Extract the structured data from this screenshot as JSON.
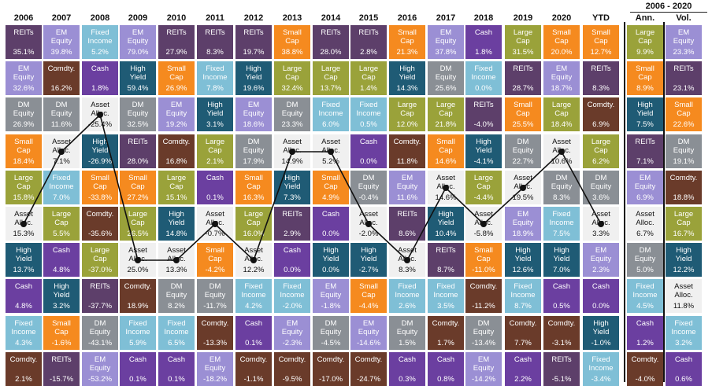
{
  "chart_data": {
    "type": "table",
    "years": [
      "2006",
      "2007",
      "2008",
      "2009",
      "2010",
      "2011",
      "2012",
      "2013",
      "2014",
      "2015",
      "2016",
      "2017",
      "2018",
      "2019",
      "2020",
      "YTD"
    ],
    "summary_title": "2006 - 2020",
    "summary_headers": [
      "Ann.",
      "Vol."
    ],
    "colors": {
      "REITs": "#5d3f6a",
      "EM Equity": "#9b8fd4",
      "Fixed Income": "#7fbfd6",
      "Comdty.": "#6a3b2a",
      "Cash": "#6b3fa0",
      "Small Cap": "#f58a1f",
      "High Yield": "#1f5b75",
      "DM Equity": "#8a8f95",
      "Large Cap": "#9aa23a",
      "Asset Alloc.": "#f0f0f0"
    },
    "names": {
      "REITs": [
        "REITs"
      ],
      "EM Equity": [
        "EM",
        "Equity"
      ],
      "Fixed Income": [
        "Fixed",
        "Income"
      ],
      "Comdty.": [
        "Comdty."
      ],
      "Cash": [
        "Cash"
      ],
      "Small Cap": [
        "Small",
        "Cap"
      ],
      "High Yield": [
        "High",
        "Yield"
      ],
      "DM Equity": [
        "DM",
        "Equity"
      ],
      "Large Cap": [
        "Large",
        "Cap"
      ],
      "Asset Alloc.": [
        "Asset",
        "Alloc."
      ]
    },
    "columns": [
      {
        "label": "2006",
        "cells": [
          [
            "REITs",
            "35.1%"
          ],
          [
            "EM Equity",
            "32.6%"
          ],
          [
            "DM Equity",
            "26.9%"
          ],
          [
            "Small Cap",
            "18.4%"
          ],
          [
            "Large Cap",
            "15.8%"
          ],
          [
            "Asset Alloc.",
            "15.3%"
          ],
          [
            "High Yield",
            "13.7%"
          ],
          [
            "Cash",
            "4.8%"
          ],
          [
            "Fixed Income",
            "4.3%"
          ],
          [
            "Comdty.",
            "2.1%"
          ]
        ]
      },
      {
        "label": "2007",
        "cells": [
          [
            "EM Equity",
            "39.8%"
          ],
          [
            "Comdty.",
            "16.2%"
          ],
          [
            "DM Equity",
            "11.6%"
          ],
          [
            "Asset Alloc.",
            "7.1%"
          ],
          [
            "Fixed Income",
            "7.0%"
          ],
          [
            "Large Cap",
            "5.5%"
          ],
          [
            "Cash",
            "4.8%"
          ],
          [
            "High Yield",
            "3.2%"
          ],
          [
            "Small Cap",
            "-1.6%"
          ],
          [
            "REITs",
            "-15.7%"
          ]
        ]
      },
      {
        "label": "2008",
        "cells": [
          [
            "Fixed Income",
            "5.2%"
          ],
          [
            "Cash",
            "1.8%"
          ],
          [
            "Asset Alloc.",
            "-25.4%"
          ],
          [
            "High Yield",
            "-26.9%"
          ],
          [
            "Small Cap",
            "-33.8%"
          ],
          [
            "Comdty.",
            "-35.6%"
          ],
          [
            "Large Cap",
            "-37.0%"
          ],
          [
            "REITs",
            "-37.7%"
          ],
          [
            "DM Equity",
            "-43.1%"
          ],
          [
            "EM Equity",
            "-53.2%"
          ]
        ]
      },
      {
        "label": "2009",
        "cells": [
          [
            "EM Equity",
            "79.0%"
          ],
          [
            "High Yield",
            "59.4%"
          ],
          [
            "DM Equity",
            "32.5%"
          ],
          [
            "REITs",
            "28.0%"
          ],
          [
            "Small Cap",
            "27.2%"
          ],
          [
            "Large Cap",
            "26.5%"
          ],
          [
            "Asset Alloc.",
            "25.0%"
          ],
          [
            "Comdty.",
            "18.9%"
          ],
          [
            "Fixed Income",
            "5.9%"
          ],
          [
            "Cash",
            "0.1%"
          ]
        ]
      },
      {
        "label": "2010",
        "cells": [
          [
            "REITs",
            "27.9%"
          ],
          [
            "Small Cap",
            "26.9%"
          ],
          [
            "EM Equity",
            "19.2%"
          ],
          [
            "Comdty.",
            "16.8%"
          ],
          [
            "Large Cap",
            "15.1%"
          ],
          [
            "High Yield",
            "14.8%"
          ],
          [
            "Asset Alloc.",
            "13.3%"
          ],
          [
            "DM Equity",
            "8.2%"
          ],
          [
            "Fixed Income",
            "6.5%"
          ],
          [
            "Cash",
            "0.1%"
          ]
        ]
      },
      {
        "label": "2011",
        "cells": [
          [
            "REITs",
            "8.3%"
          ],
          [
            "Fixed Income",
            "7.8%"
          ],
          [
            "High Yield",
            "3.1%"
          ],
          [
            "Large Cap",
            "2.1%"
          ],
          [
            "Cash",
            "0.1%"
          ],
          [
            "Asset Alloc.",
            "-0.7%"
          ],
          [
            "Small Cap",
            "-4.2%"
          ],
          [
            "DM Equity",
            "-11.7%"
          ],
          [
            "Comdty.",
            "-13.3%"
          ],
          [
            "EM Equity",
            "-18.2%"
          ]
        ]
      },
      {
        "label": "2012",
        "cells": [
          [
            "REITs",
            "19.7%"
          ],
          [
            "High Yield",
            "19.6%"
          ],
          [
            "EM Equity",
            "18.6%"
          ],
          [
            "DM Equity",
            "17.9%"
          ],
          [
            "Small Cap",
            "16.3%"
          ],
          [
            "Large Cap",
            "16.0%"
          ],
          [
            "Asset Alloc.",
            "12.2%"
          ],
          [
            "Fixed Income",
            "4.2%"
          ],
          [
            "Cash",
            "0.1%"
          ],
          [
            "Comdty.",
            "-1.1%"
          ]
        ]
      },
      {
        "label": "2013",
        "cells": [
          [
            "Small Cap",
            "38.8%"
          ],
          [
            "Large Cap",
            "32.4%"
          ],
          [
            "DM Equity",
            "23.3%"
          ],
          [
            "Asset Alloc.",
            "14.9%"
          ],
          [
            "High Yield",
            "7.3%"
          ],
          [
            "REITs",
            "2.9%"
          ],
          [
            "Cash",
            "0.0%"
          ],
          [
            "Fixed Income",
            "-2.0%"
          ],
          [
            "EM Equity",
            "-2.3%"
          ],
          [
            "Comdty.",
            "-9.5%"
          ]
        ]
      },
      {
        "label": "2014",
        "cells": [
          [
            "REITs",
            "28.0%"
          ],
          [
            "Large Cap",
            "13.7%"
          ],
          [
            "Fixed Income",
            "6.0%"
          ],
          [
            "Asset Alloc.",
            "5.2%"
          ],
          [
            "Small Cap",
            "4.9%"
          ],
          [
            "Cash",
            "0.0%"
          ],
          [
            "High Yield",
            "0.0%"
          ],
          [
            "EM Equity",
            "-1.8%"
          ],
          [
            "DM Equity",
            "-4.5%"
          ],
          [
            "Comdty.",
            "-17.0%"
          ]
        ]
      },
      {
        "label": "2015",
        "cells": [
          [
            "REITs",
            "2.8%"
          ],
          [
            "Large Cap",
            "1.4%"
          ],
          [
            "Fixed Income",
            "0.5%"
          ],
          [
            "Cash",
            "0.0%"
          ],
          [
            "DM Equity",
            "-0.4%"
          ],
          [
            "Asset Alloc.",
            "-2.0%"
          ],
          [
            "High Yield",
            "-2.7%"
          ],
          [
            "Small Cap",
            "-4.4%"
          ],
          [
            "EM Equity",
            "-14.6%"
          ],
          [
            "Comdty.",
            "-24.7%"
          ]
        ]
      },
      {
        "label": "2016",
        "cells": [
          [
            "Small Cap",
            "21.3%"
          ],
          [
            "High Yield",
            "14.3%"
          ],
          [
            "Large Cap",
            "12.0%"
          ],
          [
            "Comdty.",
            "11.8%"
          ],
          [
            "EM Equity",
            "11.6%"
          ],
          [
            "REITs",
            "8.6%"
          ],
          [
            "Asset Alloc.",
            "8.3%"
          ],
          [
            "Fixed Income",
            "2.6%"
          ],
          [
            "DM Equity",
            "1.5%"
          ],
          [
            "Cash",
            "0.3%"
          ]
        ]
      },
      {
        "label": "2017",
        "cells": [
          [
            "EM Equity",
            "37.8%"
          ],
          [
            "DM Equity",
            "25.6%"
          ],
          [
            "Large Cap",
            "21.8%"
          ],
          [
            "Small Cap",
            "14.6%"
          ],
          [
            "Asset Alloc.",
            "14.6%"
          ],
          [
            "High Yield",
            "10.4%"
          ],
          [
            "REITs",
            "8.7%"
          ],
          [
            "Fixed Income",
            "3.5%"
          ],
          [
            "Comdty.",
            "1.7%"
          ],
          [
            "Cash",
            "0.8%"
          ]
        ]
      },
      {
        "label": "2018",
        "cells": [
          [
            "Cash",
            "1.8%"
          ],
          [
            "Fixed Income",
            "0.0%"
          ],
          [
            "REITs",
            "-4.0%"
          ],
          [
            "High Yield",
            "-4.1%"
          ],
          [
            "Large Cap",
            "-4.4%"
          ],
          [
            "Asset Alloc.",
            "-5.8%"
          ],
          [
            "Small Cap",
            "-11.0%"
          ],
          [
            "Comdty.",
            "-11.2%"
          ],
          [
            "DM Equity",
            "-13.4%"
          ],
          [
            "EM Equity",
            "-14.2%"
          ]
        ]
      },
      {
        "label": "2019",
        "cells": [
          [
            "Large Cap",
            "31.5%"
          ],
          [
            "REITs",
            "28.7%"
          ],
          [
            "Small Cap",
            "25.5%"
          ],
          [
            "DM Equity",
            "22.7%"
          ],
          [
            "Asset Alloc.",
            "19.5%"
          ],
          [
            "EM Equity",
            "18.9%"
          ],
          [
            "High Yield",
            "12.6%"
          ],
          [
            "Fixed Income",
            "8.7%"
          ],
          [
            "Comdty.",
            "7.7%"
          ],
          [
            "Cash",
            "2.2%"
          ]
        ]
      },
      {
        "label": "2020",
        "cells": [
          [
            "Small Cap",
            "20.0%"
          ],
          [
            "EM Equity",
            "18.7%"
          ],
          [
            "Large Cap",
            "18.4%"
          ],
          [
            "Asset Alloc.",
            "10.6%"
          ],
          [
            "DM Equity",
            "8.3%"
          ],
          [
            "Fixed Income",
            "7.5%"
          ],
          [
            "High Yield",
            "7.0%"
          ],
          [
            "Cash",
            "0.5%"
          ],
          [
            "Comdty.",
            "-3.1%"
          ],
          [
            "REITs",
            "-5.1%"
          ]
        ]
      },
      {
        "label": "YTD",
        "cells": [
          [
            "Small Cap",
            "12.7%"
          ],
          [
            "REITs",
            "8.3%"
          ],
          [
            "Comdty.",
            "6.9%"
          ],
          [
            "Large Cap",
            "6.2%"
          ],
          [
            "DM Equity",
            "3.6%"
          ],
          [
            "Asset Alloc.",
            "3.3%"
          ],
          [
            "EM Equity",
            "2.3%"
          ],
          [
            "Cash",
            "0.0%"
          ],
          [
            "High Yield",
            "-1.0%"
          ],
          [
            "Fixed Income",
            "-3.4%"
          ]
        ]
      },
      {
        "label": "Ann.",
        "cells": [
          [
            "Large Cap",
            "9.9%"
          ],
          [
            "Small Cap",
            "8.9%"
          ],
          [
            "High Yield",
            "7.5%"
          ],
          [
            "REITs",
            "7.1%"
          ],
          [
            "EM Equity",
            "6.9%"
          ],
          [
            "Asset Alloc.",
            "6.7%"
          ],
          [
            "DM Equity",
            "5.0%"
          ],
          [
            "Fixed Income",
            "4.5%"
          ],
          [
            "Cash",
            "1.2%"
          ],
          [
            "Comdty.",
            "-4.0%"
          ]
        ]
      },
      {
        "label": "Vol.",
        "cells": [
          [
            "EM Equity",
            "23.3%"
          ],
          [
            "REITs",
            "23.1%"
          ],
          [
            "Small Cap",
            "22.6%"
          ],
          [
            "DM Equity",
            "19.1%"
          ],
          [
            "Comdty.",
            "18.8%"
          ],
          [
            "Large Cap",
            "16.7%"
          ],
          [
            "High Yield",
            "12.2%"
          ],
          [
            "Asset Alloc.",
            "11.8%"
          ],
          [
            "Fixed Income",
            "3.2%"
          ],
          [
            "Cash",
            "0.6%"
          ]
        ]
      }
    ],
    "line_series": "Asset Alloc."
  }
}
